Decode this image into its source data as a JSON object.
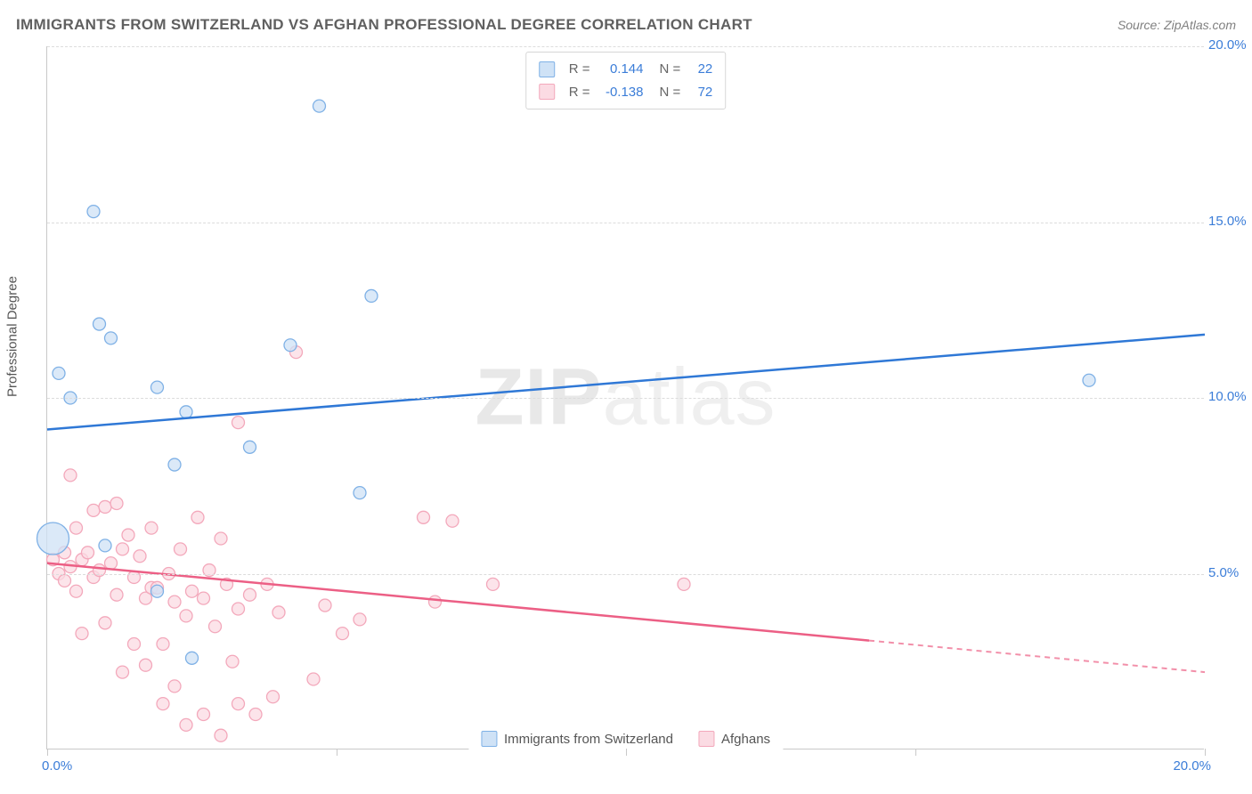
{
  "title": "IMMIGRANTS FROM SWITZERLAND VS AFGHAN PROFESSIONAL DEGREE CORRELATION CHART",
  "source_label": "Source: ZipAtlas.com",
  "watermark": {
    "bold": "ZIP",
    "thin": "atlas"
  },
  "y_axis_label": "Professional Degree",
  "chart": {
    "type": "scatter_with_trend",
    "xlim": [
      0,
      20
    ],
    "ylim": [
      0,
      20
    ],
    "x_ticks": [
      0,
      5,
      10,
      15,
      20
    ],
    "y_ticks": [
      5,
      10,
      15,
      20
    ],
    "x_tick_labels": [
      "0.0%",
      "",
      "",
      "",
      "20.0%"
    ],
    "y_tick_labels": [
      "5.0%",
      "10.0%",
      "15.0%",
      "20.0%"
    ],
    "grid_color": "#dcdcdc",
    "axis_color": "#c9c9c9",
    "axis_label_color": "#3b7dd8",
    "background_color": "#ffffff",
    "series": [
      {
        "name": "Immigrants from Switzerland",
        "key": "swiss",
        "fill": "#cfe2f6",
        "stroke": "#7fb1e6",
        "line_color": "#2f78d6",
        "r_value": "0.144",
        "n_value": "22",
        "trend": {
          "x1": 0,
          "y1": 9.1,
          "x2": 20,
          "y2": 11.8,
          "dash_after_x": null
        },
        "points": [
          {
            "x": 0.1,
            "y": 6.0,
            "r": 18
          },
          {
            "x": 0.2,
            "y": 10.7,
            "r": 7
          },
          {
            "x": 0.4,
            "y": 10.0,
            "r": 7
          },
          {
            "x": 0.8,
            "y": 15.3,
            "r": 7
          },
          {
            "x": 0.9,
            "y": 12.1,
            "r": 7
          },
          {
            "x": 1.1,
            "y": 11.7,
            "r": 7
          },
          {
            "x": 1.0,
            "y": 5.8,
            "r": 7
          },
          {
            "x": 1.9,
            "y": 10.3,
            "r": 7
          },
          {
            "x": 1.9,
            "y": 4.5,
            "r": 7
          },
          {
            "x": 2.2,
            "y": 8.1,
            "r": 7
          },
          {
            "x": 2.4,
            "y": 9.6,
            "r": 7
          },
          {
            "x": 2.5,
            "y": 2.6,
            "r": 7
          },
          {
            "x": 3.5,
            "y": 8.6,
            "r": 7
          },
          {
            "x": 4.2,
            "y": 11.5,
            "r": 7
          },
          {
            "x": 4.7,
            "y": 18.3,
            "r": 7
          },
          {
            "x": 5.4,
            "y": 7.3,
            "r": 7
          },
          {
            "x": 5.6,
            "y": 12.9,
            "r": 7
          },
          {
            "x": 18.0,
            "y": 10.5,
            "r": 7
          }
        ]
      },
      {
        "name": "Afghans",
        "key": "afghan",
        "fill": "#fbdbe3",
        "stroke": "#f3a8bb",
        "line_color": "#ec5f85",
        "r_value": "-0.138",
        "n_value": "72",
        "trend": {
          "x1": 0,
          "y1": 5.3,
          "x2": 20,
          "y2": 2.2,
          "dash_after_x": 14.2
        },
        "points": [
          {
            "x": 0.1,
            "y": 5.4,
            "r": 7
          },
          {
            "x": 0.2,
            "y": 5.0,
            "r": 7
          },
          {
            "x": 0.3,
            "y": 5.6,
            "r": 7
          },
          {
            "x": 0.3,
            "y": 4.8,
            "r": 7
          },
          {
            "x": 0.4,
            "y": 7.8,
            "r": 7
          },
          {
            "x": 0.4,
            "y": 5.2,
            "r": 7
          },
          {
            "x": 0.5,
            "y": 6.3,
            "r": 7
          },
          {
            "x": 0.5,
            "y": 4.5,
            "r": 7
          },
          {
            "x": 0.6,
            "y": 5.4,
            "r": 7
          },
          {
            "x": 0.6,
            "y": 3.3,
            "r": 7
          },
          {
            "x": 0.7,
            "y": 5.6,
            "r": 7
          },
          {
            "x": 0.8,
            "y": 6.8,
            "r": 7
          },
          {
            "x": 0.8,
            "y": 4.9,
            "r": 7
          },
          {
            "x": 0.9,
            "y": 5.1,
            "r": 7
          },
          {
            "x": 1.0,
            "y": 6.9,
            "r": 7
          },
          {
            "x": 1.0,
            "y": 3.6,
            "r": 7
          },
          {
            "x": 1.1,
            "y": 5.3,
            "r": 7
          },
          {
            "x": 1.2,
            "y": 7.0,
            "r": 7
          },
          {
            "x": 1.2,
            "y": 4.4,
            "r": 7
          },
          {
            "x": 1.3,
            "y": 5.7,
            "r": 7
          },
          {
            "x": 1.3,
            "y": 2.2,
            "r": 7
          },
          {
            "x": 1.4,
            "y": 6.1,
            "r": 7
          },
          {
            "x": 1.5,
            "y": 3.0,
            "r": 7
          },
          {
            "x": 1.5,
            "y": 4.9,
            "r": 7
          },
          {
            "x": 1.6,
            "y": 5.5,
            "r": 7
          },
          {
            "x": 1.7,
            "y": 4.3,
            "r": 7
          },
          {
            "x": 1.7,
            "y": 2.4,
            "r": 7
          },
          {
            "x": 1.8,
            "y": 6.3,
            "r": 7
          },
          {
            "x": 1.8,
            "y": 4.6,
            "r": 7
          },
          {
            "x": 1.9,
            "y": 4.6,
            "r": 7
          },
          {
            "x": 2.0,
            "y": 1.3,
            "r": 7
          },
          {
            "x": 2.0,
            "y": 3.0,
            "r": 7
          },
          {
            "x": 2.1,
            "y": 5.0,
            "r": 7
          },
          {
            "x": 2.2,
            "y": 4.2,
            "r": 7
          },
          {
            "x": 2.2,
            "y": 1.8,
            "r": 7
          },
          {
            "x": 2.3,
            "y": 5.7,
            "r": 7
          },
          {
            "x": 2.4,
            "y": 3.8,
            "r": 7
          },
          {
            "x": 2.4,
            "y": 0.7,
            "r": 7
          },
          {
            "x": 2.5,
            "y": 4.5,
            "r": 7
          },
          {
            "x": 2.6,
            "y": 6.6,
            "r": 7
          },
          {
            "x": 2.7,
            "y": 1.0,
            "r": 7
          },
          {
            "x": 2.7,
            "y": 4.3,
            "r": 7
          },
          {
            "x": 2.8,
            "y": 5.1,
            "r": 7
          },
          {
            "x": 2.9,
            "y": 3.5,
            "r": 7
          },
          {
            "x": 3.0,
            "y": 6.0,
            "r": 7
          },
          {
            "x": 3.0,
            "y": 0.4,
            "r": 7
          },
          {
            "x": 3.1,
            "y": 4.7,
            "r": 7
          },
          {
            "x": 3.2,
            "y": 2.5,
            "r": 7
          },
          {
            "x": 3.3,
            "y": 9.3,
            "r": 7
          },
          {
            "x": 3.3,
            "y": 4.0,
            "r": 7
          },
          {
            "x": 3.3,
            "y": 1.3,
            "r": 7
          },
          {
            "x": 3.5,
            "y": 4.4,
            "r": 7
          },
          {
            "x": 3.6,
            "y": 1.0,
            "r": 7
          },
          {
            "x": 3.8,
            "y": 4.7,
            "r": 7
          },
          {
            "x": 3.9,
            "y": 1.5,
            "r": 7
          },
          {
            "x": 4.0,
            "y": 3.9,
            "r": 7
          },
          {
            "x": 4.3,
            "y": 11.3,
            "r": 7
          },
          {
            "x": 4.6,
            "y": 2.0,
            "r": 7
          },
          {
            "x": 4.8,
            "y": 4.1,
            "r": 7
          },
          {
            "x": 5.1,
            "y": 3.3,
            "r": 7
          },
          {
            "x": 5.4,
            "y": 3.7,
            "r": 7
          },
          {
            "x": 6.5,
            "y": 6.6,
            "r": 7
          },
          {
            "x": 6.7,
            "y": 4.2,
            "r": 7
          },
          {
            "x": 7.0,
            "y": 6.5,
            "r": 7
          },
          {
            "x": 7.7,
            "y": 4.7,
            "r": 7
          },
          {
            "x": 11.0,
            "y": 4.7,
            "r": 7
          }
        ]
      }
    ]
  },
  "legend_bottom": [
    {
      "key": "swiss",
      "label": "Immigrants from Switzerland"
    },
    {
      "key": "afghan",
      "label": "Afghans"
    }
  ]
}
